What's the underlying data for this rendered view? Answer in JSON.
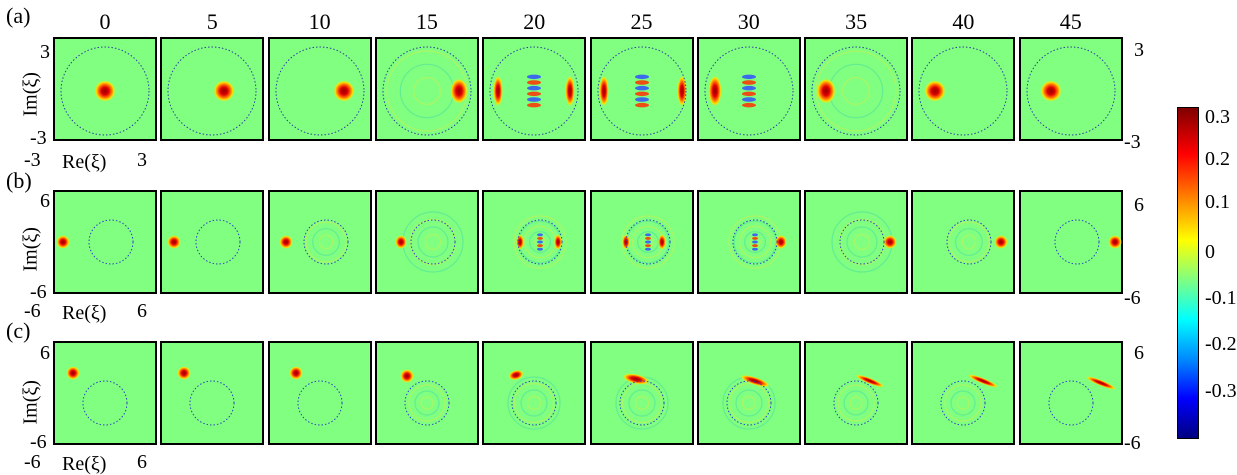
{
  "frames": [
    "0",
    "5",
    "10",
    "15",
    "20",
    "25",
    "30",
    "35",
    "40",
    "45"
  ],
  "rows": [
    {
      "label": "(a)",
      "ylabel": "Im(ξ)",
      "y_top": "3",
      "y_bottom": "-3",
      "x_left": "-3",
      "x_right": "3",
      "xlabel": "Re(ξ)",
      "right_top": "3",
      "right_bottom": "-3"
    },
    {
      "label": "(b)",
      "ylabel": "Im(ξ)",
      "y_top": "6",
      "y_bottom": "-6",
      "x_left": "-6",
      "x_right": "6",
      "xlabel": "Re(ξ)",
      "right_top": "6",
      "right_bottom": "-6"
    },
    {
      "label": "(c)",
      "ylabel": "Im(ξ)",
      "y_top": "6",
      "y_bottom": "-6",
      "x_left": "-6",
      "x_right": "6",
      "xlabel": "Re(ξ)",
      "right_top": "6",
      "right_bottom": "-6"
    }
  ],
  "colorbar": {
    "ticks": [
      "0.3",
      "0.2",
      "0.1",
      "0",
      "-0.1",
      "-0.2",
      "-0.3"
    ],
    "colormap": "jet",
    "colors": {
      "max": "#800000",
      "mid_high": "#ff0000",
      "mid": "#80ff80",
      "low": "#0000ff",
      "min": "#000080"
    }
  }
}
